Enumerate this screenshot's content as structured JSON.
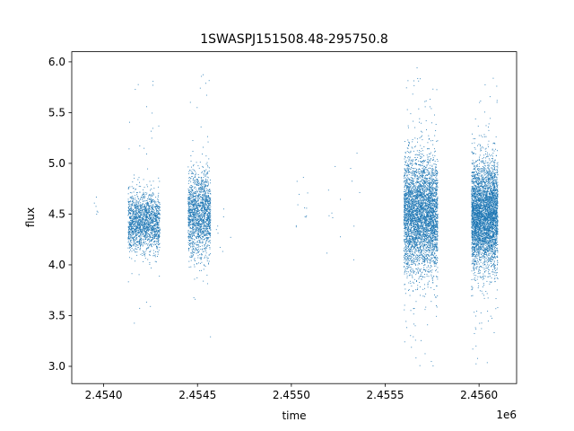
{
  "chart_data": {
    "type": "scatter",
    "title": "1SWASPJ151508.48-295750.8",
    "xlabel": "time",
    "ylabel": "flux",
    "offset_text": "1e6",
    "xlim": [
      2453830,
      2456200
    ],
    "ylim": [
      2.83,
      6.1
    ],
    "x_ticks": [
      2454000,
      2454500,
      2455000,
      2455500,
      2456000
    ],
    "x_tick_labels": [
      "2.4540",
      "2.4545",
      "2.4550",
      "2.4555",
      "2.4560"
    ],
    "y_ticks": [
      3.0,
      3.5,
      4.0,
      4.5,
      5.0,
      5.5,
      6.0
    ],
    "y_tick_labels": [
      "3.0",
      "3.5",
      "4.0",
      "4.5",
      "5.0",
      "5.5",
      "6.0"
    ],
    "grid": false,
    "marker_color": "#1f77b4",
    "clusters": [
      {
        "x_range": [
          2453950,
          2453970
        ],
        "center": 4.6,
        "spread": 0.1,
        "min": 4.5,
        "max": 4.7,
        "count": 6
      },
      {
        "x_range": [
          2454130,
          2454300
        ],
        "center": 4.42,
        "spread": 0.14,
        "min": 3.38,
        "max": 5.93,
        "count": 1800
      },
      {
        "x_range": [
          2454450,
          2454570
        ],
        "center": 4.5,
        "spread": 0.2,
        "min": 2.98,
        "max": 5.95,
        "count": 1700
      },
      {
        "x_range": [
          2454600,
          2454680
        ],
        "center": 4.3,
        "spread": 0.2,
        "min": 3.9,
        "max": 4.55,
        "count": 8
      },
      {
        "x_range": [
          2455020,
          2455090
        ],
        "center": 4.55,
        "spread": 0.2,
        "min": 4.3,
        "max": 4.9,
        "count": 12
      },
      {
        "x_range": [
          2455180,
          2455380
        ],
        "center": 4.7,
        "spread": 0.3,
        "min": 4.05,
        "max": 5.1,
        "count": 14
      },
      {
        "x_range": [
          2455600,
          2455780
        ],
        "center": 4.5,
        "spread": 0.28,
        "min": 2.98,
        "max": 5.97,
        "count": 4200
      },
      {
        "x_range": [
          2455960,
          2456100
        ],
        "center": 4.48,
        "spread": 0.26,
        "min": 2.97,
        "max": 5.88,
        "count": 4200
      }
    ]
  }
}
